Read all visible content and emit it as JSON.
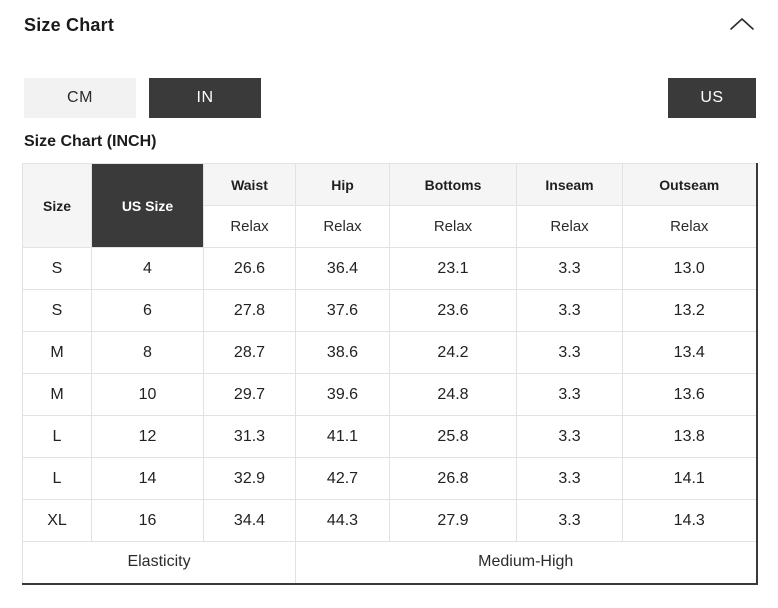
{
  "header": {
    "title": "Size Chart",
    "collapse_icon": "chevron-up-icon"
  },
  "unit_toggle": {
    "cm_label": "CM",
    "in_label": "IN",
    "selected": "IN"
  },
  "region_toggle": {
    "us_label": "US",
    "selected": "US"
  },
  "table_title": "Size Chart (INCH)",
  "size_table": {
    "columns": [
      "Size",
      "US Size",
      "Waist",
      "Hip",
      "Bottoms",
      "Inseam",
      "Outseam"
    ],
    "fit_row": [
      "Relax",
      "Relax",
      "Relax",
      "Relax",
      "Relax"
    ],
    "rows": [
      [
        "S",
        "4",
        "26.6",
        "36.4",
        "23.1",
        "3.3",
        "13.0"
      ],
      [
        "S",
        "6",
        "27.8",
        "37.6",
        "23.6",
        "3.3",
        "13.2"
      ],
      [
        "M",
        "8",
        "28.7",
        "38.6",
        "24.2",
        "3.3",
        "13.4"
      ],
      [
        "M",
        "10",
        "29.7",
        "39.6",
        "24.8",
        "3.3",
        "13.6"
      ],
      [
        "L",
        "12",
        "31.3",
        "41.1",
        "25.8",
        "3.3",
        "13.8"
      ],
      [
        "L",
        "14",
        "32.9",
        "42.7",
        "26.8",
        "3.3",
        "14.1"
      ],
      [
        "XL",
        "16",
        "34.4",
        "44.3",
        "27.9",
        "3.3",
        "14.3"
      ]
    ],
    "footer": {
      "label": "Elasticity",
      "value": "Medium-High"
    }
  },
  "colors": {
    "accent_dark": "#3a3a3a",
    "light_gray_bg": "#f2f2f2",
    "header_gray_bg": "#f5f5f5",
    "border_light": "#e2e2e2",
    "text_dark": "#1b1b1b"
  }
}
